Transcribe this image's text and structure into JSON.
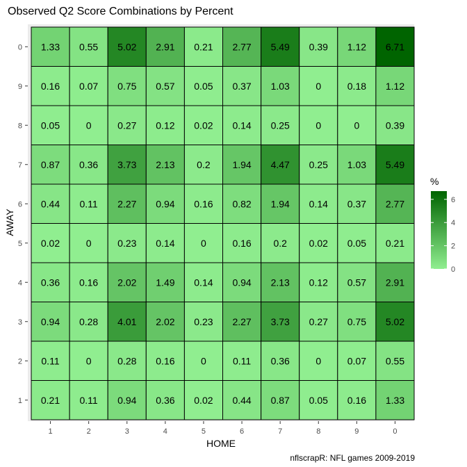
{
  "chart_data": {
    "type": "heatmap",
    "title": "Observed Q2 Score Combinations by Percent",
    "xlabel": "HOME",
    "ylabel": "AWAY",
    "caption": "nflscrapR: NFL games 2009-2019",
    "x_categories": [
      "1",
      "2",
      "3",
      "4",
      "5",
      "6",
      "7",
      "8",
      "9",
      "0"
    ],
    "y_categories": [
      "1",
      "2",
      "3",
      "4",
      "5",
      "6",
      "7",
      "8",
      "9",
      "0"
    ],
    "values": [
      [
        0.21,
        0.11,
        0.94,
        0.36,
        0.02,
        0.44,
        0.87,
        0.05,
        0.16,
        1.33
      ],
      [
        0.11,
        0,
        0.28,
        0.16,
        0,
        0.11,
        0.36,
        0,
        0.07,
        0.55
      ],
      [
        0.94,
        0.28,
        4.01,
        2.02,
        0.23,
        2.27,
        3.73,
        0.27,
        0.75,
        5.02
      ],
      [
        0.36,
        0.16,
        2.02,
        1.49,
        0.14,
        0.94,
        2.13,
        0.12,
        0.57,
        2.91
      ],
      [
        0.02,
        0,
        0.23,
        0.14,
        0,
        0.16,
        0.2,
        0.02,
        0.05,
        0.21
      ],
      [
        0.44,
        0.11,
        2.27,
        0.94,
        0.16,
        0.82,
        1.94,
        0.14,
        0.37,
        2.77
      ],
      [
        0.87,
        0.36,
        3.73,
        2.13,
        0.2,
        1.94,
        4.47,
        0.25,
        1.03,
        5.49
      ],
      [
        0.05,
        0,
        0.27,
        0.12,
        0.02,
        0.14,
        0.25,
        0,
        0,
        0.39
      ],
      [
        0.16,
        0.07,
        0.75,
        0.57,
        0.05,
        0.37,
        1.03,
        0,
        0.18,
        1.12
      ],
      [
        1.33,
        0.55,
        5.02,
        2.91,
        0.21,
        2.77,
        5.49,
        0.39,
        1.12,
        6.71
      ]
    ],
    "legend": {
      "title": "%",
      "ticks": [
        0,
        2,
        4,
        6
      ],
      "range": [
        0,
        6.71
      ],
      "low_color": "#90EE90",
      "high_color": "#006400",
      "placement": "right"
    },
    "panel_background": "#EBEBEB",
    "cell_border_color": "#000000"
  }
}
